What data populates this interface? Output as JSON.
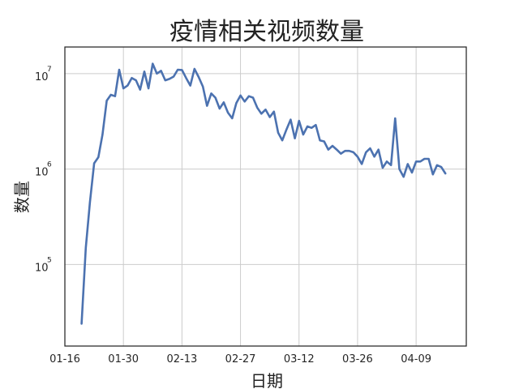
{
  "chart_data": {
    "type": "line",
    "title": "疫情相关视频数量",
    "xlabel": "日期",
    "ylabel": "数量",
    "y_scale": "log",
    "ylim": [
      14000,
      19000000
    ],
    "xlim": [
      "2020-01-16",
      "2020-04-21"
    ],
    "grid": true,
    "x_ticks": [
      {
        "date": "2020-01-16",
        "label": "01-16"
      },
      {
        "date": "2020-01-30",
        "label": "01-30"
      },
      {
        "date": "2020-02-13",
        "label": "02-13"
      },
      {
        "date": "2020-02-27",
        "label": "02-27"
      },
      {
        "date": "2020-03-12",
        "label": "03-12"
      },
      {
        "date": "2020-03-26",
        "label": "03-26"
      },
      {
        "date": "2020-04-09",
        "label": "04-09"
      }
    ],
    "y_ticks": [
      {
        "value": 100000,
        "base": "10",
        "exp": "5"
      },
      {
        "value": 1000000,
        "base": "10",
        "exp": "6"
      },
      {
        "value": 10000000,
        "base": "10",
        "exp": "7"
      }
    ],
    "series": [
      {
        "color": "#4c72b0",
        "points": [
          [
            "2020-01-20",
            24000
          ],
          [
            "2020-01-21",
            150000
          ],
          [
            "2020-01-22",
            450000
          ],
          [
            "2020-01-23",
            1150000
          ],
          [
            "2020-01-24",
            1330000
          ],
          [
            "2020-01-25",
            2300000
          ],
          [
            "2020-01-26",
            5200000
          ],
          [
            "2020-01-27",
            6000000
          ],
          [
            "2020-01-28",
            5800000
          ],
          [
            "2020-01-29",
            11000000
          ],
          [
            "2020-01-30",
            7000000
          ],
          [
            "2020-01-31",
            7500000
          ],
          [
            "2020-02-01",
            9000000
          ],
          [
            "2020-02-02",
            8500000
          ],
          [
            "2020-02-03",
            6800000
          ],
          [
            "2020-02-04",
            10500000
          ],
          [
            "2020-02-05",
            7000000
          ],
          [
            "2020-02-06",
            12700000
          ],
          [
            "2020-02-07",
            10000000
          ],
          [
            "2020-02-08",
            10700000
          ],
          [
            "2020-02-09",
            8500000
          ],
          [
            "2020-02-10",
            8800000
          ],
          [
            "2020-02-11",
            9300000
          ],
          [
            "2020-02-12",
            11000000
          ],
          [
            "2020-02-13",
            10900000
          ],
          [
            "2020-02-14",
            9000000
          ],
          [
            "2020-02-15",
            7500000
          ],
          [
            "2020-02-16",
            11200000
          ],
          [
            "2020-02-17",
            9200000
          ],
          [
            "2020-02-18",
            7300000
          ],
          [
            "2020-02-19",
            4600000
          ],
          [
            "2020-02-20",
            6200000
          ],
          [
            "2020-02-21",
            5600000
          ],
          [
            "2020-02-22",
            4300000
          ],
          [
            "2020-02-23",
            5000000
          ],
          [
            "2020-02-24",
            3900000
          ],
          [
            "2020-02-25",
            3400000
          ],
          [
            "2020-02-26",
            4900000
          ],
          [
            "2020-02-27",
            5900000
          ],
          [
            "2020-02-28",
            5100000
          ],
          [
            "2020-02-29",
            5800000
          ],
          [
            "2020-03-01",
            5600000
          ],
          [
            "2020-03-02",
            4400000
          ],
          [
            "2020-03-03",
            3800000
          ],
          [
            "2020-03-04",
            4200000
          ],
          [
            "2020-03-05",
            3500000
          ],
          [
            "2020-03-06",
            4000000
          ],
          [
            "2020-03-07",
            2400000
          ],
          [
            "2020-03-08",
            2000000
          ],
          [
            "2020-03-09",
            2600000
          ],
          [
            "2020-03-10",
            3300000
          ],
          [
            "2020-03-11",
            2100000
          ],
          [
            "2020-03-12",
            3200000
          ],
          [
            "2020-03-13",
            2300000
          ],
          [
            "2020-03-14",
            2800000
          ],
          [
            "2020-03-15",
            2700000
          ],
          [
            "2020-03-16",
            2900000
          ],
          [
            "2020-03-17",
            2000000
          ],
          [
            "2020-03-18",
            1950000
          ],
          [
            "2020-03-19",
            1600000
          ],
          [
            "2020-03-20",
            1750000
          ],
          [
            "2020-03-21",
            1600000
          ],
          [
            "2020-03-22",
            1450000
          ],
          [
            "2020-03-23",
            1550000
          ],
          [
            "2020-03-24",
            1550000
          ],
          [
            "2020-03-25",
            1500000
          ],
          [
            "2020-03-26",
            1350000
          ],
          [
            "2020-03-27",
            1130000
          ],
          [
            "2020-03-28",
            1500000
          ],
          [
            "2020-03-29",
            1650000
          ],
          [
            "2020-03-30",
            1350000
          ],
          [
            "2020-03-31",
            1600000
          ],
          [
            "2020-04-01",
            1030000
          ],
          [
            "2020-04-02",
            1200000
          ],
          [
            "2020-04-03",
            1100000
          ],
          [
            "2020-04-04",
            3400000
          ],
          [
            "2020-04-05",
            1000000
          ],
          [
            "2020-04-06",
            830000
          ],
          [
            "2020-04-07",
            1130000
          ],
          [
            "2020-04-08",
            920000
          ],
          [
            "2020-04-09",
            1200000
          ],
          [
            "2020-04-10",
            1200000
          ],
          [
            "2020-04-11",
            1280000
          ],
          [
            "2020-04-12",
            1280000
          ],
          [
            "2020-04-13",
            880000
          ],
          [
            "2020-04-14",
            1100000
          ],
          [
            "2020-04-15",
            1050000
          ],
          [
            "2020-04-16",
            900000
          ]
        ]
      }
    ]
  }
}
